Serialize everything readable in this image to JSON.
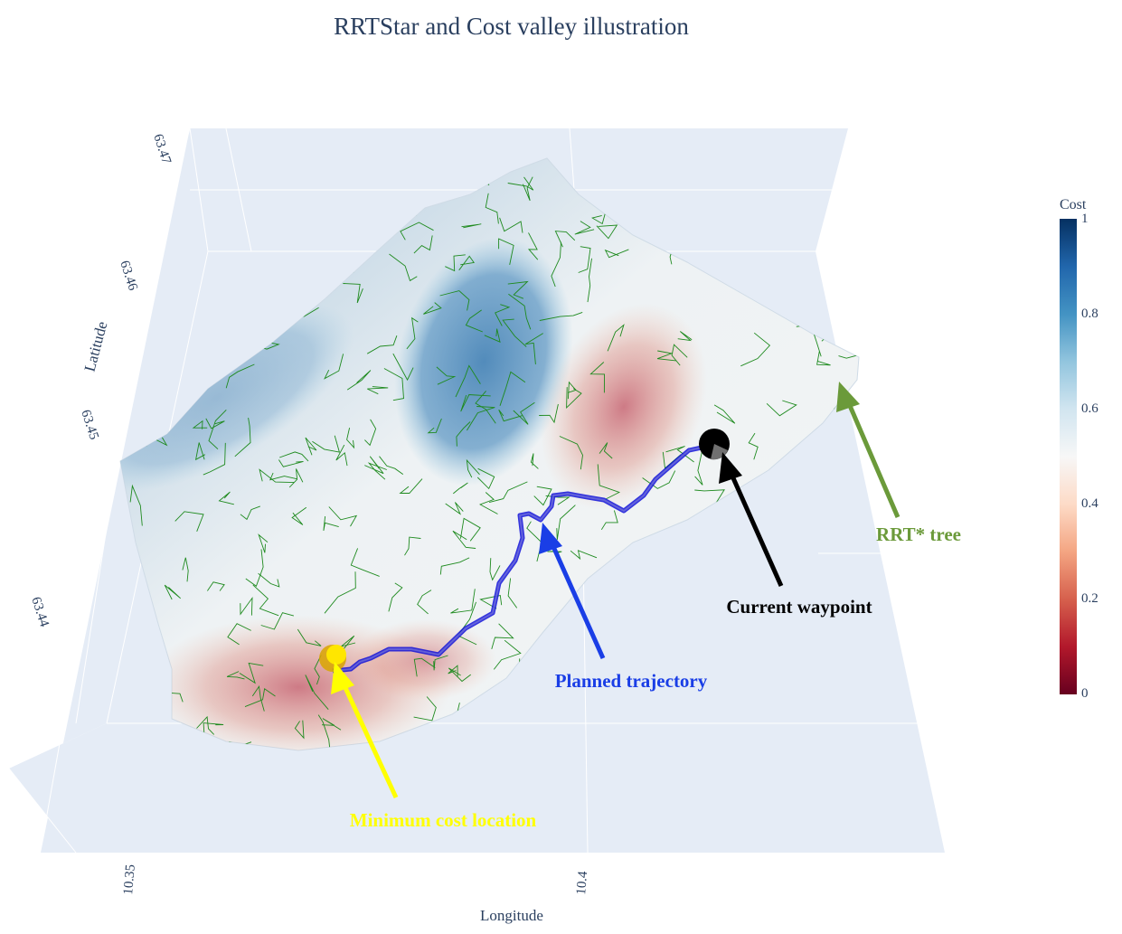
{
  "chart_data": {
    "type": "surface",
    "title": "RRTStar and Cost valley illustration",
    "xlabel": "Longitude",
    "ylabel": "Latitude",
    "x_ticks": [
      "10.35",
      "10.4"
    ],
    "y_ticks": [
      "63.44",
      "63.45",
      "63.46",
      "63.47"
    ],
    "colorbar": {
      "title": "Cost",
      "ticks": [
        "0",
        "0.2",
        "0.4",
        "0.6",
        "0.8",
        "1"
      ],
      "range": [
        0,
        1
      ],
      "colorscale": [
        "#67001f",
        "#b2182b",
        "#d6604d",
        "#f4a582",
        "#fddbc7",
        "#f7f7f7",
        "#d1e5f0",
        "#92c5de",
        "#4393c3",
        "#2166ac",
        "#053061"
      ]
    },
    "annotations": [
      {
        "text": "Minimum cost location",
        "color": "#ffff00"
      },
      {
        "text": "Planned trajectory",
        "color": "#1a3ee6"
      },
      {
        "text": "Current waypoint",
        "color": "#000000"
      },
      {
        "text": "RRT* tree",
        "color": "#6b9a3a"
      }
    ],
    "series": [
      {
        "kind": "cost_surface"
      },
      {
        "kind": "rrt_tree",
        "color": "#1e8a1e"
      },
      {
        "kind": "trajectory",
        "color": "#1010e0"
      },
      {
        "kind": "minimum_cost_marker",
        "color": "#f5c400"
      },
      {
        "kind": "current_waypoint_marker",
        "color": "#000000"
      }
    ]
  }
}
